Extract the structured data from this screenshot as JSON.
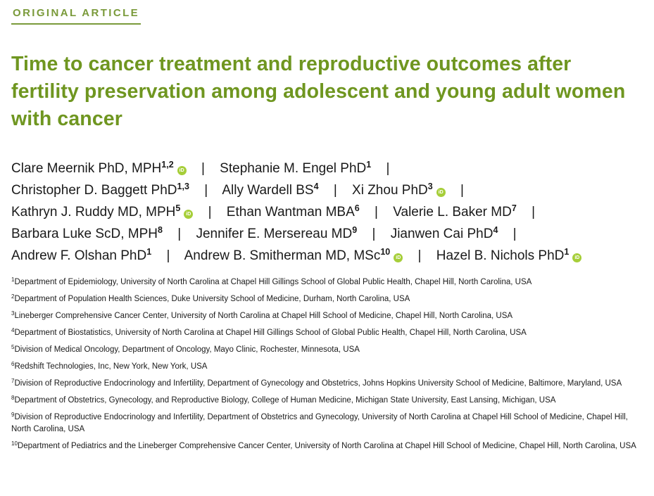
{
  "section_label": "ORIGINAL ARTICLE",
  "title": "Time to cancer treatment and reproductive outcomes after fertility preservation among adolescent and young adult women with cancer",
  "orcid_badge_text": "iD",
  "separator": "|",
  "authors": [
    {
      "name": "Clare Meernik PhD, MPH",
      "sup": "1,2"
    },
    {
      "name": "Stephanie M. Engel PhD",
      "sup": "1"
    },
    {
      "name": "Christopher D. Baggett PhD",
      "sup": "1,3"
    },
    {
      "name": "Ally Wardell BS",
      "sup": "4"
    },
    {
      "name": "Xi Zhou PhD",
      "sup": "3"
    },
    {
      "name": "Kathryn J. Ruddy MD, MPH",
      "sup": "5"
    },
    {
      "name": "Ethan Wantman MBA",
      "sup": "6"
    },
    {
      "name": "Valerie L. Baker MD",
      "sup": "7"
    },
    {
      "name": "Barbara Luke ScD, MPH",
      "sup": "8"
    },
    {
      "name": "Jennifer E. Mersereau MD",
      "sup": "9"
    },
    {
      "name": "Jianwen Cai PhD",
      "sup": "4"
    },
    {
      "name": "Andrew F. Olshan PhD",
      "sup": "1"
    },
    {
      "name": "Andrew B. Smitherman MD, MSc",
      "sup": "10"
    },
    {
      "name": "Hazel B. Nichols PhD",
      "sup": "1"
    }
  ],
  "affiliations": [
    {
      "num": "1",
      "text": "Department of Epidemiology, University of North Carolina at Chapel Hill Gillings School of Global Public Health, Chapel Hill, North Carolina, USA"
    },
    {
      "num": "2",
      "text": "Department of Population Health Sciences, Duke University School of Medicine, Durham, North Carolina, USA"
    },
    {
      "num": "3",
      "text": "Lineberger Comprehensive Cancer Center, University of North Carolina at Chapel Hill School of Medicine, Chapel Hill, North Carolina, USA"
    },
    {
      "num": "4",
      "text": "Department of Biostatistics, University of North Carolina at Chapel Hill Gillings School of Global Public Health, Chapel Hill, North Carolina, USA"
    },
    {
      "num": "5",
      "text": "Division of Medical Oncology, Department of Oncology, Mayo Clinic, Rochester, Minnesota, USA"
    },
    {
      "num": "6",
      "text": "Redshift Technologies, Inc, New York, New York, USA"
    },
    {
      "num": "7",
      "text": "Division of Reproductive Endocrinology and Infertility, Department of Gynecology and Obstetrics, Johns Hopkins University School of Medicine, Baltimore, Maryland, USA"
    },
    {
      "num": "8",
      "text": "Department of Obstetrics, Gynecology, and Reproductive Biology, College of Human Medicine, Michigan State University, East Lansing, Michigan, USA"
    },
    {
      "num": "9",
      "text": "Division of Reproductive Endocrinology and Infertility, Department of Obstetrics and Gynecology, University of North Carolina at Chapel Hill School of Medicine, Chapel Hill, North Carolina, USA"
    },
    {
      "num": "10",
      "text": "Department of Pediatrics and the Lineberger Comprehensive Cancer Center, University of North Carolina at Chapel Hill School of Medicine, Chapel Hill, North Carolina, USA"
    }
  ],
  "colors": {
    "accent": "#7a9a3a",
    "title": "#6f9620",
    "orcid": "#a6ce39",
    "text": "#1a1a1a"
  },
  "icons": {
    "orcid": "orcid-icon"
  }
}
